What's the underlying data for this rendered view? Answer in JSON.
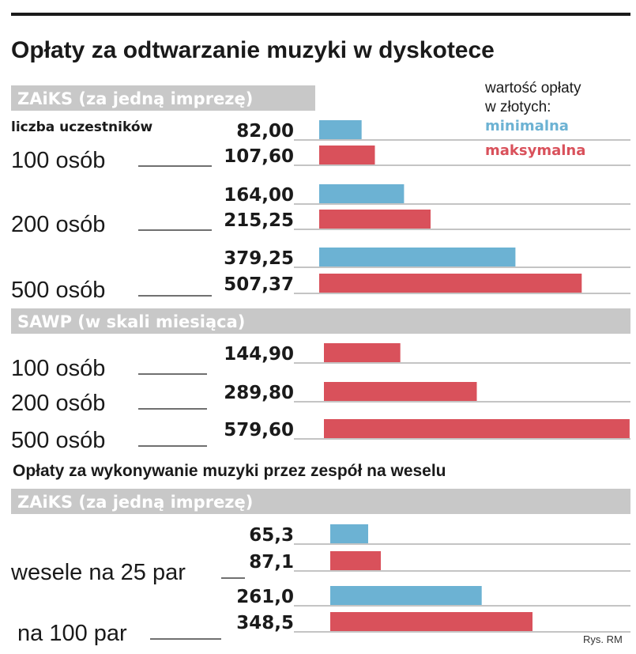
{
  "title": "Opłaty za odtwarzanie muzyki w dyskotece",
  "legend": {
    "title_line1": "wartość opłaty",
    "title_line2": "w złotych:",
    "min_label": "minimalna",
    "max_label": "maksymalna"
  },
  "column_label": "liczba uczestników",
  "subtitle2": "Opłaty za wykonywanie muzyki przez zespół na weselu",
  "credit": "Rys. RM",
  "colors": {
    "min": "#6cb2d3",
    "max": "#d9515b",
    "band": "#c8c8c8",
    "rule": "#1a1a1a"
  },
  "chart_data": [
    {
      "type": "bar",
      "title": "ZAiKS (za jedną imprezę)",
      "categories": [
        "100 osób",
        "200 osób",
        "500 osób"
      ],
      "series": [
        {
          "name": "minimalna",
          "values": [
            82.0,
            164.0,
            379.25
          ],
          "labels": [
            "82,00",
            "164,00",
            "379,25"
          ]
        },
        {
          "name": "maksymalna",
          "values": [
            107.6,
            215.25,
            507.37
          ],
          "labels": [
            "107,60",
            "215,25",
            "507,37"
          ]
        }
      ]
    },
    {
      "type": "bar",
      "title": "SAWP (w skali miesiąca)",
      "categories": [
        "100 osób",
        "200 osób",
        "500 osób"
      ],
      "series": [
        {
          "name": "maksymalna",
          "values": [
            144.9,
            289.8,
            579.6
          ],
          "labels": [
            "144,90",
            "289,80",
            "579,60"
          ]
        }
      ]
    },
    {
      "type": "bar",
      "title": "ZAiKS (za jedną imprezę)",
      "categories": [
        "wesele na 25 par",
        "na 100 par"
      ],
      "series": [
        {
          "name": "minimalna",
          "values": [
            65.3,
            261.0
          ],
          "labels": [
            "65,3",
            "261,0"
          ]
        },
        {
          "name": "maksymalna",
          "values": [
            87.1,
            348.5
          ],
          "labels": [
            "87,1",
            "348,5"
          ]
        }
      ]
    }
  ]
}
